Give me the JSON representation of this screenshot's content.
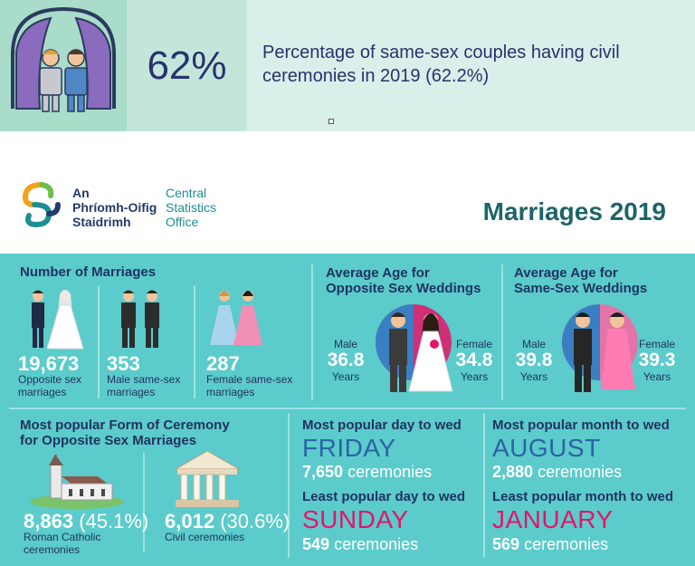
{
  "top_banner": {
    "percent": "62%",
    "description": "Percentage of same-sex couples having civil ceremonies in 2019 (62.2%)",
    "icon": "same-sex-grooms-icon"
  },
  "header": {
    "logo_irish": [
      "An",
      "Phríomh-Oifig",
      "Staidrimh"
    ],
    "logo_english": [
      "Central",
      "Statistics",
      "Office"
    ],
    "title": "Marriages 2019"
  },
  "number_of_marriages": {
    "title": "Number of Marriages",
    "items": [
      {
        "value": "19,673",
        "label": [
          "Opposite sex",
          "marriages"
        ],
        "icon": "bride-groom-icon"
      },
      {
        "value": "353",
        "label": [
          "Male same-sex",
          "marriages"
        ],
        "icon": "two-grooms-icon"
      },
      {
        "value": "287",
        "label": [
          "Female same-sex",
          "marriages"
        ],
        "icon": "two-brides-icon"
      }
    ]
  },
  "avg_age_opposite": {
    "title": [
      "Average Age for",
      "Opposite Sex Weddings"
    ],
    "male": {
      "label": "Male",
      "value": "36.8",
      "unit": "Years"
    },
    "female": {
      "label": "Female",
      "value": "34.8",
      "unit": "Years"
    }
  },
  "avg_age_same": {
    "title": [
      "Average Age for",
      "Same-Sex Weddings"
    ],
    "male": {
      "label": "Male",
      "value": "39.8",
      "unit": "Years"
    },
    "female": {
      "label": "Female",
      "value": "39.3",
      "unit": "Years"
    }
  },
  "ceremony": {
    "title": [
      "Most popular Form of Ceremony",
      "for Opposite Sex Marriages"
    ],
    "items": [
      {
        "value": "8,863",
        "pct": "(45.1%)",
        "label": [
          "Roman Catholic",
          "ceremonies"
        ],
        "icon": "church-icon"
      },
      {
        "value": "6,012",
        "pct": "(30.6%)",
        "label": [
          "Civil ceremonies"
        ],
        "icon": "civic-building-icon"
      }
    ]
  },
  "popular_day": {
    "most_label": "Most popular day to wed",
    "most_value": "FRIDAY",
    "most_count": "7,650",
    "least_label": "Least popular day to wed",
    "least_value": "SUNDAY",
    "least_count": "549",
    "unit": "ceremonies"
  },
  "popular_month": {
    "most_label": "Most popular month to wed",
    "most_value": "AUGUST",
    "most_count": "2,880",
    "least_label": "Least popular month to wed",
    "least_value": "JANUARY",
    "least_count": "569",
    "unit": "ceremonies"
  },
  "colors": {
    "navy": "#1f3461",
    "teal": "#5ccbcb",
    "blue_highlight": "#2b63a4",
    "pink_highlight": "#e2156a",
    "title_teal": "#1d6468"
  }
}
